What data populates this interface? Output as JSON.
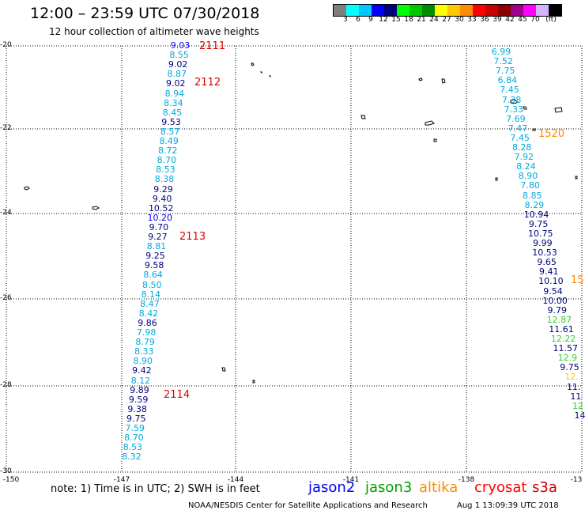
{
  "header": {
    "title": "12:00 – 23:59 UTC 07/30/2018",
    "subtitle": "12 hour collection of altimeter wave heights"
  },
  "colorbar": {
    "colors": [
      "#7f7f7f",
      "#00ffff",
      "#00c8ff",
      "#0000ff",
      "#00007f",
      "#00ff00",
      "#00c800",
      "#008c00",
      "#ffff00",
      "#ffc800",
      "#ff8c00",
      "#ff0000",
      "#c80000",
      "#8c0000",
      "#a0008c",
      "#ff00ff",
      "#d2b4ff",
      "#000000"
    ],
    "labels": [
      "3",
      "6",
      "9",
      "12",
      "15",
      "18",
      "21",
      "24",
      "27",
      "30",
      "33",
      "36",
      "39",
      "42",
      "45",
      "70",
      "(ft)"
    ]
  },
  "axes": {
    "lat_labels": [
      "-20",
      "-22",
      "-24",
      "-26",
      "-28",
      "-30"
    ],
    "lon_labels": [
      "-150",
      "-147",
      "-144",
      "-141",
      "-138",
      "-13"
    ]
  },
  "tracks": {
    "west": {
      "values": [
        "9.03",
        "8.55",
        "9.02",
        "8.87",
        "9.02",
        "8.94",
        "8.34",
        "8.45",
        "9.53",
        "8.57",
        "8.49",
        "8.72",
        "8.70",
        "8.53",
        "8.38",
        "9.29",
        "9.40",
        "10.52",
        "10.20",
        "9.70",
        "9.27",
        "8.81",
        "9.25",
        "9.58",
        "8.64",
        "8.50",
        "8.14",
        "8.47",
        "8.42",
        "9.86",
        "7.98",
        "8.79",
        "8.33",
        "8.90",
        "9.42",
        "8.12",
        "9.89",
        "9.59",
        "9.38",
        "9.75",
        "7.59",
        "8.70",
        "8.53",
        "8.32"
      ],
      "colors": [
        "#0000ff",
        "#00aadd",
        "#00007f",
        "#00aadd",
        "#00007f",
        "#00aadd",
        "#00aadd",
        "#00aadd",
        "#00007f",
        "#00aadd",
        "#00aadd",
        "#00aadd",
        "#00aadd",
        "#00aadd",
        "#00aadd",
        "#00007f",
        "#00007f",
        "#00007f",
        "#0000ff",
        "#00007f",
        "#00007f",
        "#00aadd",
        "#00007f",
        "#00007f",
        "#00aadd",
        "#00aadd",
        "#00aadd",
        "#00aadd",
        "#00aadd",
        "#00007f",
        "#00aadd",
        "#00aadd",
        "#00aadd",
        "#00aadd",
        "#00007f",
        "#00aadd",
        "#00007f",
        "#00007f",
        "#00007f",
        "#00007f",
        "#00aadd",
        "#00aadd",
        "#00aadd",
        "#00aadd"
      ],
      "time_labels": [
        "2111",
        "2112",
        "2113",
        "2114"
      ]
    },
    "east": {
      "values": [
        "6.99",
        "7.52",
        "7.75",
        "6.84",
        "7.45",
        "7.38",
        "7.33",
        "7.69",
        "7.47",
        "7.45",
        "8.28",
        "7.92",
        "8.24",
        "8.90",
        "7.80",
        "8.85",
        "8.29",
        "10.94",
        "9.75",
        "10.75",
        "9.99",
        "10.53",
        "9.65",
        "9.41",
        "10.10",
        "9.54",
        "10.00",
        "9.79",
        "12.87",
        "11.61",
        "12.22",
        "11.57",
        "12.9",
        "9.75",
        "12.",
        "11.",
        "11",
        "12",
        "14"
      ],
      "colors": [
        "#00aadd",
        "#00aadd",
        "#00aadd",
        "#00aadd",
        "#00aadd",
        "#00aadd",
        "#00aadd",
        "#00aadd",
        "#00aadd",
        "#00aadd",
        "#00aadd",
        "#00aadd",
        "#00aadd",
        "#00aadd",
        "#00aadd",
        "#00aadd",
        "#00aadd",
        "#00007f",
        "#00007f",
        "#00007f",
        "#00007f",
        "#00007f",
        "#00007f",
        "#00007f",
        "#00007f",
        "#00007f",
        "#00007f",
        "#00007f",
        "#33cc33",
        "#00007f",
        "#33cc33",
        "#00007f",
        "#33cc33",
        "#00007f",
        "#ffcc00",
        "#00007f",
        "#00007f",
        "#33cc33",
        "#00007f"
      ],
      "time_labels": [
        "1520",
        "15"
      ]
    }
  },
  "footer": {
    "note": "note:  1) Time is in UTC;  2) SWH is in feet",
    "legend": [
      {
        "name": "jason2",
        "color": "#0000ff"
      },
      {
        "name": "jason3",
        "color": "#00a000"
      },
      {
        "name": "altika",
        "color": "#ff8c00"
      },
      {
        "name": "cryosat",
        "color": "#ff0000"
      },
      {
        "name": "s3a",
        "color": "#cc0000"
      }
    ],
    "credit": "NOAA/NESDIS Center for Satellite Applications and Research",
    "timestamp": "Aug  1 13:09:39 UTC 2018"
  }
}
